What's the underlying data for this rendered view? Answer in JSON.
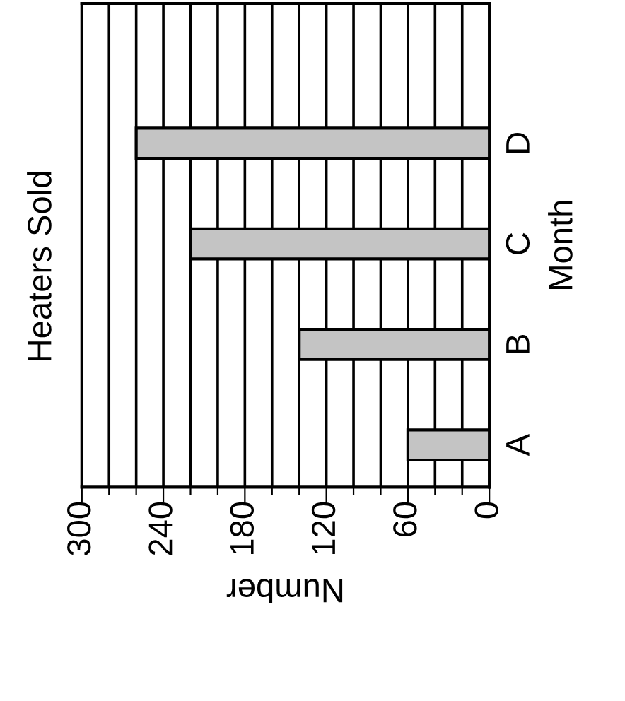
{
  "chart_data": {
    "type": "bar",
    "orientation": "horizontal",
    "title": "Heaters Sold",
    "xlabel": "Number",
    "ylabel": "Month",
    "categories": [
      "D",
      "C",
      "B",
      "A"
    ],
    "values": [
      260,
      220,
      140,
      60
    ],
    "color": "#c4c4c4",
    "xlim": [
      300,
      0
    ],
    "xticks": [
      300,
      {
        "value": 280,
        "label": null
      },
      {
        "value": 260,
        "label": null
      },
      240,
      {
        "value": 220,
        "label": null
      },
      {
        "value": 200,
        "label": null
      },
      180,
      {
        "value": 160,
        "label": null
      },
      {
        "value": 140,
        "label": null
      },
      120,
      {
        "value": 100,
        "label": null
      },
      {
        "value": 80,
        "label": null
      },
      60,
      {
        "value": 40,
        "label": null
      },
      {
        "value": 20,
        "label": null
      },
      0
    ],
    "grid": "x"
  }
}
